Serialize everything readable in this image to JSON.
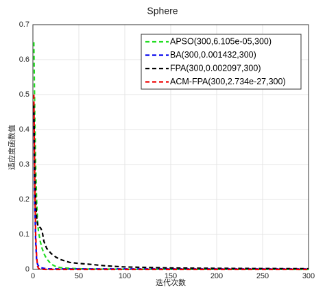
{
  "chart_data": {
    "type": "line",
    "title": "Sphere",
    "x_label": "迭代次数",
    "y_label": "适应度函数值",
    "x": [
      1,
      2,
      3,
      4,
      5,
      6,
      8,
      10,
      12,
      15,
      20,
      25,
      30,
      40,
      50,
      60,
      80,
      100,
      150,
      200,
      250,
      300
    ],
    "series": [
      {
        "name": "APSO(300,6.105e-05,300)",
        "color": "#22dd22",
        "values": [
          0.65,
          0.45,
          0.3,
          0.2,
          0.14,
          0.11,
          0.08,
          0.06,
          0.045,
          0.03,
          0.015,
          0.008,
          0.005,
          0.003,
          0.002,
          0.001,
          0.0008,
          0.0005,
          0.0003,
          0.0002,
          0.0001,
          6.105e-05
        ]
      },
      {
        "name": "BA(300,0.001432,300)",
        "color": "#0000ee",
        "values": [
          0.45,
          0.2,
          0.08,
          0.03,
          0.015,
          0.01,
          0.006,
          0.004,
          0.003,
          0.002,
          0.0015,
          0.0015,
          0.0015,
          0.0015,
          0.0015,
          0.0015,
          0.0015,
          0.0015,
          0.0015,
          0.0015,
          0.0015,
          0.001432
        ]
      },
      {
        "name": "FPA(300,0.002097,300)",
        "color": "#000000",
        "values": [
          0.47,
          0.3,
          0.2,
          0.15,
          0.13,
          0.12,
          0.12,
          0.11,
          0.08,
          0.06,
          0.045,
          0.035,
          0.028,
          0.02,
          0.017,
          0.015,
          0.01,
          0.007,
          0.004,
          0.003,
          0.0025,
          0.002097
        ]
      },
      {
        "name": "ACM-FPA(300,2.734e-27,300)",
        "color": "#ee0000",
        "values": [
          0.5,
          0.25,
          0.1,
          0.04,
          0.01,
          0.003,
          0.001,
          0.0003,
          0.0001,
          1e-05,
          1e-06,
          0,
          0,
          0,
          0,
          0,
          0,
          0,
          0,
          0,
          0,
          2.734e-27
        ]
      }
    ],
    "xlim": [
      0,
      300
    ],
    "xticks": [
      0,
      50,
      100,
      150,
      200,
      250,
      300
    ],
    "ylim": [
      0,
      0.7
    ],
    "yticks": [
      0,
      0.1,
      0.2,
      0.3,
      0.4,
      0.5,
      0.6,
      0.7
    ],
    "grid": true,
    "legend_position": "upper right"
  }
}
